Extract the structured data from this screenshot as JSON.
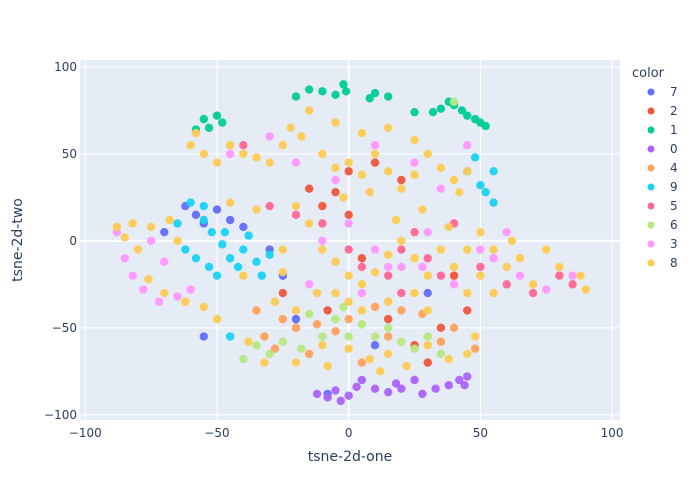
{
  "chart_data": {
    "type": "scatter",
    "title": "",
    "xlabel": "tsne-2d-one",
    "ylabel": "tsne-2d-two",
    "xlim": [
      -102,
      103
    ],
    "ylim": [
      -103,
      104
    ],
    "xticks": [
      -100,
      -50,
      0,
      50,
      100
    ],
    "yticks": [
      -100,
      -50,
      0,
      50,
      100
    ],
    "xtick_labels": [
      "−100",
      "−50",
      "0",
      "50",
      "100"
    ],
    "ytick_labels": [
      "−100",
      "−50",
      "0",
      "50",
      "100"
    ],
    "grid": true,
    "legend_title": "color",
    "legend_position": "right",
    "plot_bgcolor": "#E5ECF6",
    "series": [
      {
        "name": "7",
        "color": "#636EFA",
        "points": [
          [
            -62,
            20
          ],
          [
            -58,
            15
          ],
          [
            -55,
            10
          ],
          [
            -50,
            18
          ],
          [
            -45,
            12
          ],
          [
            -40,
            8
          ],
          [
            -70,
            5
          ],
          [
            -30,
            -5
          ],
          [
            -25,
            -20
          ],
          [
            -20,
            -45
          ],
          [
            -8,
            -88
          ],
          [
            10,
            -60
          ],
          [
            -55,
            -55
          ],
          [
            30,
            -30
          ]
        ]
      },
      {
        "name": "2",
        "color": "#EF553B",
        "points": [
          [
            -15,
            30
          ],
          [
            -5,
            28
          ],
          [
            0,
            40
          ],
          [
            10,
            45
          ],
          [
            20,
            35
          ],
          [
            -10,
            20
          ],
          [
            0,
            15
          ],
          [
            5,
            -10
          ],
          [
            -8,
            -40
          ],
          [
            15,
            -45
          ],
          [
            25,
            -60
          ],
          [
            35,
            -50
          ],
          [
            45,
            -40
          ],
          [
            30,
            -70
          ],
          [
            -25,
            -30
          ],
          [
            40,
            -20
          ]
        ]
      },
      {
        "name": "1",
        "color": "#00CC96",
        "points": [
          [
            -55,
            70
          ],
          [
            -53,
            65
          ],
          [
            -50,
            72
          ],
          [
            -48,
            68
          ],
          [
            -58,
            64
          ],
          [
            -20,
            83
          ],
          [
            -15,
            87
          ],
          [
            -10,
            86
          ],
          [
            -5,
            84
          ],
          [
            -2,
            90
          ],
          [
            -1,
            86
          ],
          [
            8,
            82
          ],
          [
            10,
            85
          ],
          [
            15,
            83
          ],
          [
            25,
            74
          ],
          [
            32,
            74
          ],
          [
            35,
            76
          ],
          [
            38,
            80
          ],
          [
            40,
            78
          ],
          [
            43,
            75
          ],
          [
            45,
            72
          ],
          [
            48,
            70
          ],
          [
            50,
            68
          ],
          [
            52,
            66
          ]
        ]
      },
      {
        "name": "0",
        "color": "#AB63FA",
        "points": [
          [
            -12,
            -88
          ],
          [
            -8,
            -90
          ],
          [
            -5,
            -86
          ],
          [
            0,
            -89
          ],
          [
            3,
            -84
          ],
          [
            5,
            -80
          ],
          [
            10,
            -85
          ],
          [
            15,
            -87
          ],
          [
            20,
            -85
          ],
          [
            25,
            -80
          ],
          [
            28,
            -88
          ],
          [
            33,
            -85
          ],
          [
            38,
            -83
          ],
          [
            42,
            -80
          ],
          [
            44,
            -83
          ],
          [
            45,
            -78
          ],
          [
            -3,
            -92
          ],
          [
            18,
            -82
          ]
        ]
      },
      {
        "name": "4",
        "color": "#FFA15A",
        "points": [
          [
            -35,
            -40
          ],
          [
            -32,
            -55
          ],
          [
            -28,
            -62
          ],
          [
            -20,
            -50
          ],
          [
            -12,
            -48
          ],
          [
            -5,
            -52
          ],
          [
            10,
            -38
          ],
          [
            20,
            -40
          ],
          [
            28,
            -42
          ],
          [
            35,
            -58
          ],
          [
            48,
            -62
          ],
          [
            15,
            -55
          ],
          [
            0,
            -45
          ],
          [
            -15,
            -65
          ],
          [
            5,
            -70
          ],
          [
            40,
            -50
          ],
          [
            -25,
            -45
          ]
        ]
      },
      {
        "name": "9",
        "color": "#19D3F3",
        "points": [
          [
            -60,
            22
          ],
          [
            -55,
            12
          ],
          [
            -52,
            5
          ],
          [
            -48,
            -2
          ],
          [
            -45,
            -10
          ],
          [
            -42,
            -15
          ],
          [
            -40,
            -5
          ],
          [
            -38,
            3
          ],
          [
            -35,
            -12
          ],
          [
            -33,
            -20
          ],
          [
            -30,
            -8
          ],
          [
            -50,
            -20
          ],
          [
            -58,
            -10
          ],
          [
            -62,
            -5
          ],
          [
            -65,
            10
          ],
          [
            -55,
            20
          ],
          [
            55,
            40
          ],
          [
            52,
            28
          ],
          [
            55,
            22
          ],
          [
            50,
            32
          ],
          [
            45,
            40
          ],
          [
            48,
            48
          ],
          [
            -45,
            -55
          ],
          [
            -53,
            -15
          ],
          [
            -47,
            5
          ]
        ]
      },
      {
        "name": "5",
        "color": "#FF6692",
        "points": [
          [
            -20,
            15
          ],
          [
            -10,
            10
          ],
          [
            0,
            -5
          ],
          [
            5,
            -15
          ],
          [
            15,
            -20
          ],
          [
            20,
            -5
          ],
          [
            25,
            5
          ],
          [
            30,
            -10
          ],
          [
            35,
            -20
          ],
          [
            50,
            -15
          ],
          [
            60,
            -25
          ],
          [
            70,
            -30
          ],
          [
            80,
            -20
          ],
          [
            85,
            -25
          ],
          [
            -30,
            20
          ],
          [
            40,
            10
          ],
          [
            -40,
            55
          ],
          [
            20,
            -30
          ]
        ]
      },
      {
        "name": "6",
        "color": "#B6E880",
        "points": [
          [
            -35,
            -60
          ],
          [
            -30,
            -65
          ],
          [
            -25,
            -58
          ],
          [
            -18,
            -62
          ],
          [
            -10,
            -55
          ],
          [
            -5,
            -45
          ],
          [
            0,
            -55
          ],
          [
            5,
            -48
          ],
          [
            10,
            -55
          ],
          [
            15,
            -50
          ],
          [
            20,
            -58
          ],
          [
            25,
            -62
          ],
          [
            30,
            -55
          ],
          [
            -40,
            -68
          ],
          [
            -15,
            -42
          ],
          [
            40,
            80
          ],
          [
            -2,
            -38
          ],
          [
            35,
            -65
          ]
        ]
      },
      {
        "name": "3",
        "color": "#FF97FF",
        "points": [
          [
            -85,
            -10
          ],
          [
            -82,
            -20
          ],
          [
            -78,
            -28
          ],
          [
            -72,
            -35
          ],
          [
            -65,
            -32
          ],
          [
            -60,
            -28
          ],
          [
            -88,
            5
          ],
          [
            -75,
            0
          ],
          [
            -70,
            -12
          ],
          [
            -10,
            0
          ],
          [
            0,
            10
          ],
          [
            10,
            -5
          ],
          [
            20,
            -15
          ],
          [
            30,
            5
          ],
          [
            40,
            -25
          ],
          [
            55,
            -10
          ],
          [
            65,
            -20
          ],
          [
            75,
            -28
          ],
          [
            85,
            -20
          ],
          [
            -20,
            45
          ],
          [
            -5,
            35
          ],
          [
            10,
            55
          ],
          [
            25,
            45
          ],
          [
            35,
            30
          ],
          [
            45,
            55
          ],
          [
            -30,
            60
          ],
          [
            -15,
            -25
          ],
          [
            5,
            -30
          ],
          [
            15,
            -15
          ],
          [
            60,
            5
          ],
          [
            50,
            -5
          ],
          [
            -45,
            50
          ],
          [
            28,
            -15
          ]
        ]
      },
      {
        "name": "8",
        "color": "#FECB52",
        "points": [
          [
            -88,
            8
          ],
          [
            -85,
            2
          ],
          [
            -82,
            10
          ],
          [
            -80,
            -5
          ],
          [
            -76,
            -22
          ],
          [
            -70,
            -30
          ],
          [
            -62,
            -35
          ],
          [
            -55,
            -38
          ],
          [
            -68,
            12
          ],
          [
            -75,
            8
          ],
          [
            -60,
            55
          ],
          [
            -55,
            50
          ],
          [
            -50,
            45
          ],
          [
            -45,
            55
          ],
          [
            -40,
            50
          ],
          [
            -35,
            48
          ],
          [
            -30,
            45
          ],
          [
            -25,
            55
          ],
          [
            -22,
            65
          ],
          [
            -18,
            60
          ],
          [
            -10,
            50
          ],
          [
            -5,
            42
          ],
          [
            0,
            45
          ],
          [
            5,
            38
          ],
          [
            10,
            50
          ],
          [
            15,
            40
          ],
          [
            20,
            30
          ],
          [
            25,
            38
          ],
          [
            30,
            50
          ],
          [
            35,
            42
          ],
          [
            40,
            35
          ],
          [
            42,
            28
          ],
          [
            45,
            40
          ],
          [
            -20,
            20
          ],
          [
            -15,
            10
          ],
          [
            -10,
            -5
          ],
          [
            -5,
            -12
          ],
          [
            0,
            -20
          ],
          [
            5,
            -25
          ],
          [
            10,
            -18
          ],
          [
            15,
            -8
          ],
          [
            20,
            0
          ],
          [
            25,
            -10
          ],
          [
            30,
            -20
          ],
          [
            35,
            -5
          ],
          [
            40,
            -15
          ],
          [
            45,
            -5
          ],
          [
            -25,
            -5
          ],
          [
            -28,
            -35
          ],
          [
            -20,
            -40
          ],
          [
            -12,
            -30
          ],
          [
            -5,
            -30
          ],
          [
            0,
            -35
          ],
          [
            5,
            -40
          ],
          [
            15,
            -35
          ],
          [
            25,
            -30
          ],
          [
            30,
            -40
          ],
          [
            45,
            -30
          ],
          [
            50,
            -20
          ],
          [
            55,
            -30
          ],
          [
            60,
            -15
          ],
          [
            65,
            -10
          ],
          [
            70,
            -25
          ],
          [
            80,
            -15
          ],
          [
            88,
            -20
          ],
          [
            90,
            -28
          ],
          [
            -50,
            -45
          ],
          [
            -38,
            -58
          ],
          [
            -32,
            -70
          ],
          [
            -20,
            -70
          ],
          [
            -10,
            -60
          ],
          [
            0,
            -62
          ],
          [
            8,
            -68
          ],
          [
            15,
            -65
          ],
          [
            22,
            -72
          ],
          [
            30,
            -60
          ],
          [
            38,
            -68
          ],
          [
            45,
            -65
          ],
          [
            48,
            -55
          ],
          [
            -15,
            75
          ],
          [
            -5,
            68
          ],
          [
            5,
            62
          ],
          [
            15,
            65
          ],
          [
            25,
            58
          ],
          [
            -58,
            62
          ],
          [
            -45,
            22
          ],
          [
            -35,
            18
          ],
          [
            -65,
            0
          ],
          [
            50,
            5
          ],
          [
            55,
            -5
          ],
          [
            62,
            0
          ],
          [
            75,
            -5
          ],
          [
            -40,
            -20
          ],
          [
            -25,
            -18
          ],
          [
            -2,
            25
          ],
          [
            8,
            28
          ],
          [
            18,
            12
          ],
          [
            28,
            18
          ],
          [
            38,
            8
          ],
          [
            -8,
            -72
          ],
          [
            12,
            -75
          ]
        ]
      }
    ]
  }
}
